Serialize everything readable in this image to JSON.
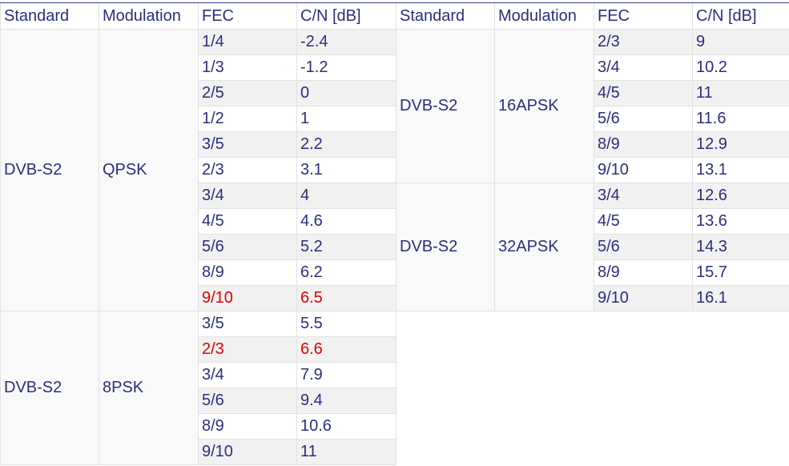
{
  "headers": {
    "standard": "Standard",
    "modulation": "Modulation",
    "fec": "FEC",
    "cn": "C/N [dB]"
  },
  "left_table": {
    "groups": [
      {
        "standard": "DVB-S2",
        "modulation": "QPSK",
        "rows": [
          {
            "fec": "1/4",
            "cn": "-2.4",
            "highlighted": false
          },
          {
            "fec": "1/3",
            "cn": "-1.2",
            "highlighted": false
          },
          {
            "fec": "2/5",
            "cn": "0",
            "highlighted": false
          },
          {
            "fec": "1/2",
            "cn": "1",
            "highlighted": false
          },
          {
            "fec": "3/5",
            "cn": "2.2",
            "highlighted": false
          },
          {
            "fec": "2/3",
            "cn": "3.1",
            "highlighted": false
          },
          {
            "fec": "3/4",
            "cn": "4",
            "highlighted": false
          },
          {
            "fec": "4/5",
            "cn": "4.6",
            "highlighted": false
          },
          {
            "fec": "5/6",
            "cn": "5.2",
            "highlighted": false
          },
          {
            "fec": "8/9",
            "cn": "6.2",
            "highlighted": false
          },
          {
            "fec": "9/10",
            "cn": "6.5",
            "highlighted": true
          }
        ]
      },
      {
        "standard": "DVB-S2",
        "modulation": "8PSK",
        "rows": [
          {
            "fec": "3/5",
            "cn": "5.5",
            "highlighted": false
          },
          {
            "fec": "2/3",
            "cn": "6.6",
            "highlighted": true
          },
          {
            "fec": "3/4",
            "cn": "7.9",
            "highlighted": false
          },
          {
            "fec": "5/6",
            "cn": "9.4",
            "highlighted": false
          },
          {
            "fec": "8/9",
            "cn": "10.6",
            "highlighted": false
          },
          {
            "fec": "9/10",
            "cn": "11",
            "highlighted": false
          }
        ]
      }
    ]
  },
  "right_table": {
    "groups": [
      {
        "standard": "DVB-S2",
        "modulation": "16APSK",
        "rows": [
          {
            "fec": "2/3",
            "cn": "9",
            "highlighted": false
          },
          {
            "fec": "3/4",
            "cn": "10.2",
            "highlighted": false
          },
          {
            "fec": "4/5",
            "cn": "11",
            "highlighted": false
          },
          {
            "fec": "5/6",
            "cn": "11.6",
            "highlighted": false
          },
          {
            "fec": "8/9",
            "cn": "12.9",
            "highlighted": false
          },
          {
            "fec": "9/10",
            "cn": "13.1",
            "highlighted": false
          }
        ]
      },
      {
        "standard": "DVB-S2",
        "modulation": "32APSK",
        "rows": [
          {
            "fec": "3/4",
            "cn": "12.6",
            "highlighted": false
          },
          {
            "fec": "4/5",
            "cn": "13.6",
            "highlighted": false
          },
          {
            "fec": "5/6",
            "cn": "14.3",
            "highlighted": false
          },
          {
            "fec": "8/9",
            "cn": "15.7",
            "highlighted": false
          },
          {
            "fec": "9/10",
            "cn": "16.1",
            "highlighted": false
          }
        ]
      }
    ]
  },
  "colors": {
    "text": "#2b2f7c",
    "highlight": "#e00000",
    "row_alt": "#f1f1f1",
    "group_cell": "#f9f9f9",
    "border": "#e2e2e2"
  }
}
